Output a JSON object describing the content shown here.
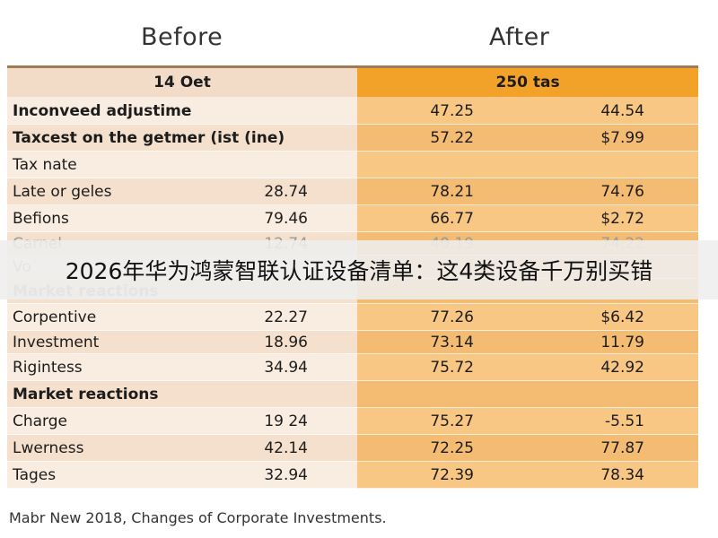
{
  "chart_data": {
    "type": "table",
    "column_headers": {
      "before": "Before",
      "after": "After"
    },
    "group_headers": {
      "before": "14 Oet",
      "after": "250 tas"
    },
    "rows": [
      {
        "label": "Inconveed adjustime",
        "before": "",
        "after1": "47.25",
        "after2": "44.54",
        "bold": true
      },
      {
        "label": "Taxcest on the getmer (ist (ine)",
        "before": "",
        "after1": "57.22",
        "after2": "$7.99",
        "bold": true
      },
      {
        "label": "Tax nate",
        "before": "",
        "after1": "",
        "after2": ""
      },
      {
        "label": "Late or geles",
        "before": "28.74",
        "after1": "78.21",
        "after2": "74.76"
      },
      {
        "label": "Befions",
        "before": "79.46",
        "after1": "66.77",
        "after2": "$2.72"
      },
      {
        "label": "Carnel",
        "before": "12.74",
        "after1": "40.19",
        "after2": "74.22",
        "faded": true
      },
      {
        "label": "Vo",
        "before": "",
        "after1": "",
        "after2": "",
        "faded": true
      },
      {
        "label": "Market reactions",
        "before": "",
        "after1": "",
        "after2": "",
        "bold": true,
        "faded": true
      },
      {
        "label": "Corpentive",
        "before": "22.27",
        "after1": "77.26",
        "after2": "$6.42"
      },
      {
        "label": "Investment",
        "before": "18.96",
        "after1": "73.14",
        "after2": "11.79"
      },
      {
        "label": "Rigintess",
        "before": "34.94",
        "after1": "75.72",
        "after2": "42.92"
      },
      {
        "label": "Market reactions",
        "before": "",
        "after1": "",
        "after2": "",
        "bold": true
      },
      {
        "label": "Charge",
        "before": "19 24",
        "after1": "75.27",
        "after2": "-5.51"
      },
      {
        "label": "Lwerness",
        "before": "42.14",
        "after1": "72.25",
        "after2": "77.87"
      },
      {
        "label": "Tages",
        "before": "32.94",
        "after1": "72.39",
        "after2": "78.34"
      }
    ]
  },
  "overlay_banner": "2026年华为鸿蒙智联认证设备清单：这4类设备千万别买错",
  "footer": "Mabr New 2018, Changes of Corporate Investments.",
  "colors": {
    "after_header": "#f2a228",
    "after_cells": "#f8c784",
    "before_cells": "#f9ece0"
  }
}
